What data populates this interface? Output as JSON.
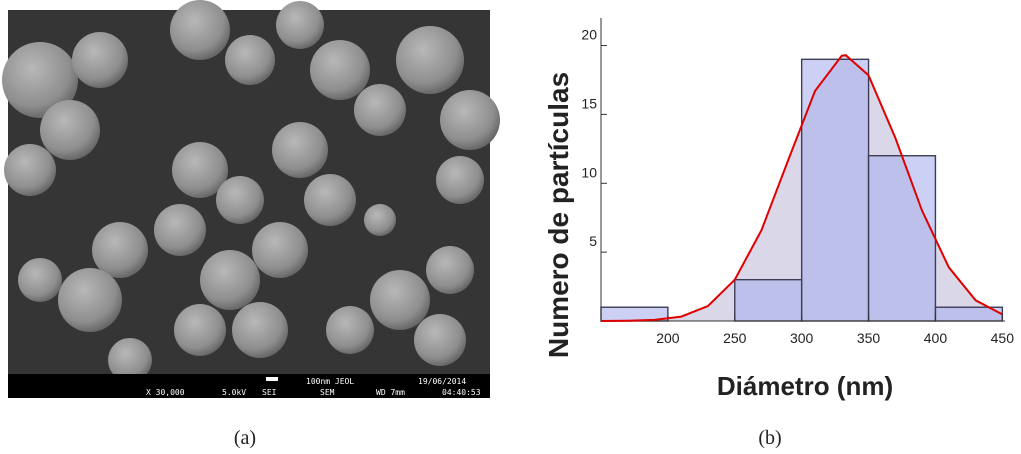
{
  "image_panel": {
    "scale_label": "100nm JEOL",
    "date": "19/06/2014",
    "magnification": "X 30,000",
    "voltage": "5.0kV",
    "mode": "SEI",
    "detector": "SEM",
    "working_distance": "WD 7mm",
    "time": "04:40:53",
    "caption": "(a)"
  },
  "chart_data": {
    "type": "histogram",
    "x_label": "Diámetro (nm)",
    "y_label": "Numero de partículas",
    "bins": [
      150,
      200,
      250,
      300,
      350,
      400,
      450
    ],
    "counts": [
      1,
      0,
      3,
      19,
      12,
      1
    ],
    "color": "#aab0ec",
    "edge_color": "#3d3d55",
    "curve": {
      "color": "#e00000",
      "fill": "#d9d7e8",
      "x": [
        150,
        170,
        190,
        210,
        230,
        250,
        270,
        290,
        310,
        330,
        333,
        350,
        370,
        390,
        410,
        430,
        450
      ],
      "values": [
        0,
        0.02,
        0.08,
        0.32,
        1.09,
        3.0,
        6.6,
        11.7,
        16.7,
        19.26,
        19.3,
        17.85,
        13.3,
        8.0,
        3.9,
        1.5,
        0.48
      ]
    },
    "xlim": [
      150,
      452
    ],
    "ylim": [
      0,
      22
    ],
    "xticks": [
      200,
      250,
      300,
      350,
      400,
      450
    ],
    "yticks": [
      5,
      10,
      15,
      20
    ],
    "caption": "(b)"
  }
}
